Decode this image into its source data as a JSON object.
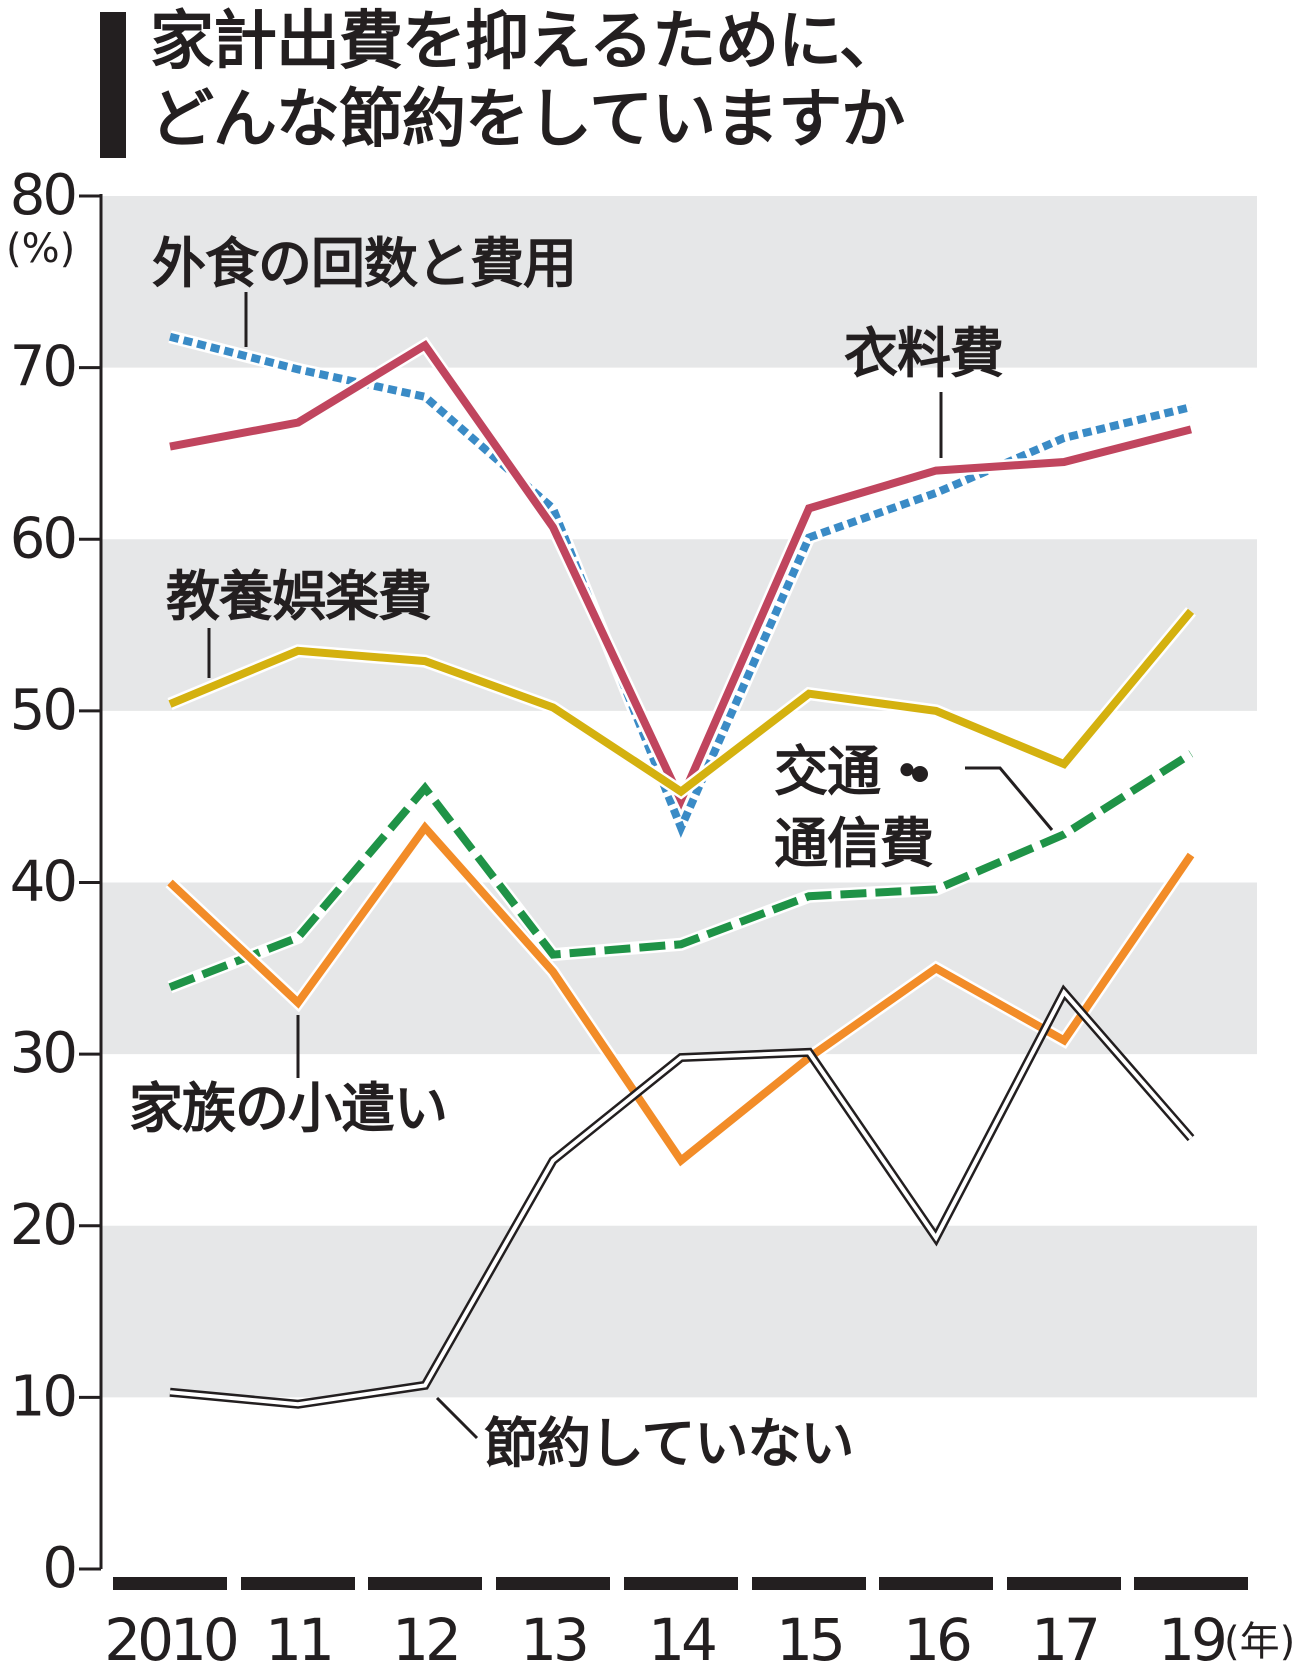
{
  "title_lines": [
    "家計出費を抑えるために、",
    "どんな節約をしていますか"
  ],
  "chart_data": {
    "type": "line",
    "title": "家計出費を抑えるために、どんな節約をしていますか",
    "ylabel": "(%)",
    "xlabel": "(年)",
    "ylim": [
      0,
      80
    ],
    "yticks": [
      "0",
      "10",
      "20",
      "30",
      "40",
      "50",
      "60",
      "70",
      "80"
    ],
    "x": [
      "2010",
      "11",
      "12",
      "13",
      "14",
      "15",
      "16",
      "17",
      "19"
    ],
    "grid": "alternating gray bands",
    "series": [
      {
        "name": "外食の回数と費用",
        "color": "#3a8bc6",
        "style": "dotted",
        "values": [
          71.8,
          69.9,
          68.3,
          61.8,
          43.2,
          60.1,
          62.7,
          65.9,
          67.7
        ]
      },
      {
        "name": "衣料費",
        "color": "#c0455e",
        "style": "solid",
        "values": [
          65.4,
          66.8,
          71.3,
          60.7,
          44.8,
          61.8,
          64.0,
          64.5,
          66.4
        ]
      },
      {
        "name": "教養娯楽費",
        "color": "#d4b10f",
        "style": "solid",
        "values": [
          50.4,
          53.5,
          52.9,
          50.2,
          45.3,
          51.0,
          50.0,
          46.9,
          55.8
        ]
      },
      {
        "name": "交通・通信費",
        "color": "#1f9347",
        "style": "dashed",
        "values": [
          33.9,
          36.8,
          45.5,
          35.8,
          36.4,
          39.2,
          39.6,
          42.8,
          47.5
        ]
      },
      {
        "name": "家族の小遣い",
        "color": "#f28c28",
        "style": "solid",
        "values": [
          40.0,
          33.0,
          43.2,
          34.8,
          23.8,
          29.8,
          35.0,
          30.8,
          41.6
        ]
      },
      {
        "name": "節約していない",
        "color": "#231f20",
        "style": "double",
        "values": [
          10.3,
          9.6,
          10.7,
          23.8,
          29.8,
          30.1,
          19.3,
          33.6,
          25.1
        ]
      }
    ],
    "labels": [
      "外食の回数と費用",
      "衣料費",
      "教養娯楽費",
      "交通・",
      "通信費",
      "家族の小遣い",
      "節約していない"
    ]
  }
}
